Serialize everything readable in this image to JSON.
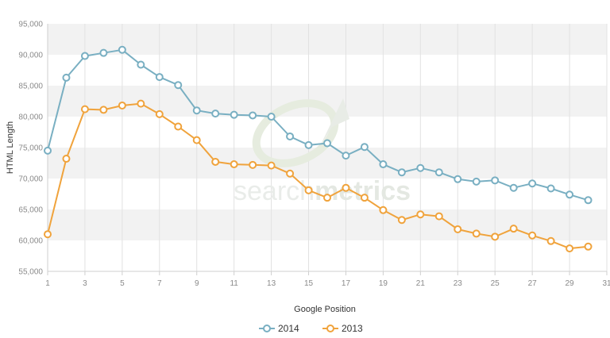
{
  "chart_data": {
    "type": "line",
    "title": "",
    "xlabel": "Google Position",
    "ylabel": "HTML Length",
    "xlim": [
      1,
      31
    ],
    "ylim": [
      55000,
      95000
    ],
    "x_ticks": [
      1,
      3,
      5,
      7,
      9,
      11,
      13,
      15,
      17,
      19,
      21,
      23,
      25,
      27,
      29,
      31
    ],
    "y_ticks": [
      55000,
      60000,
      65000,
      70000,
      75000,
      80000,
      85000,
      90000,
      95000
    ],
    "y_tick_labels": [
      "55,000",
      "60,000",
      "65,000",
      "70,000",
      "75,000",
      "80,000",
      "85,000",
      "90,000",
      "95,000"
    ],
    "x": [
      1,
      2,
      3,
      4,
      5,
      6,
      7,
      8,
      9,
      10,
      11,
      12,
      13,
      14,
      15,
      16,
      17,
      18,
      19,
      20,
      21,
      22,
      23,
      24,
      25,
      26,
      27,
      28,
      29,
      30
    ],
    "series": [
      {
        "name": "2014",
        "color": "#79afc2",
        "values": [
          74500,
          86300,
          89800,
          90300,
          90800,
          88400,
          86400,
          85100,
          81000,
          80500,
          80300,
          80200,
          80000,
          76800,
          75400,
          75700,
          73700,
          75100,
          72300,
          71000,
          71700,
          71000,
          69900,
          69500,
          69700,
          68500,
          69200,
          68400,
          67400,
          66500
        ]
      },
      {
        "name": "2013",
        "color": "#f0a33c",
        "values": [
          61000,
          73200,
          81200,
          81100,
          81800,
          82100,
          80400,
          78400,
          76200,
          72700,
          72300,
          72200,
          72100,
          70800,
          68100,
          66900,
          68500,
          66900,
          64900,
          63300,
          64200,
          63900,
          61800,
          61100,
          60600,
          61900,
          60800,
          59900,
          58700,
          59000
        ]
      }
    ],
    "grid": "alternating horizontal bands, vertical lines",
    "legend": "bottom-center"
  },
  "watermark": {
    "light": "search",
    "bold": "metrics"
  }
}
